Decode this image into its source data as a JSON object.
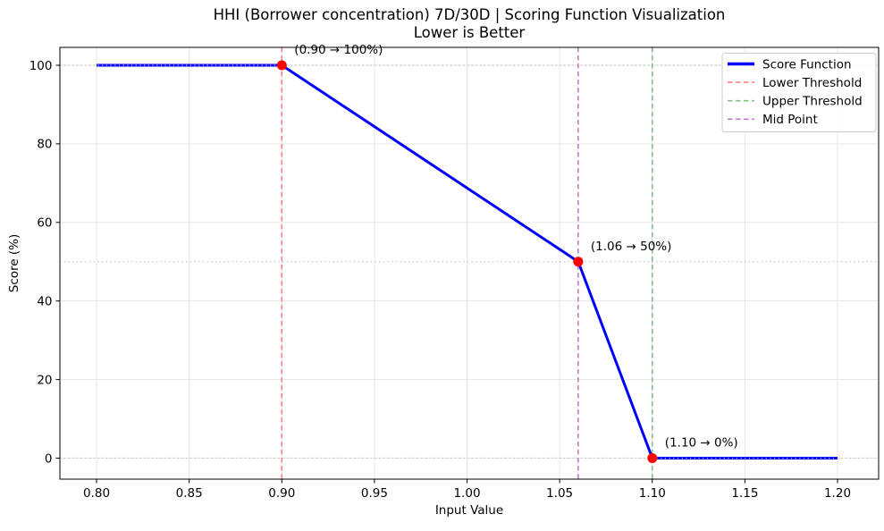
{
  "chart_data": {
    "type": "line",
    "title": "HHI (Borrower concentration) 7D/30D | Scoring Function Visualization",
    "subtitle": "Lower is Better",
    "xlabel": "Input Value",
    "ylabel": "Score (%)",
    "xlim": [
      0.7802,
      1.2222
    ],
    "ylim": [
      -5.35,
      104.55
    ],
    "x_ticks": [
      0.8,
      0.85,
      0.9,
      0.95,
      1.0,
      1.05,
      1.1,
      1.15,
      1.2
    ],
    "x_tick_labels": [
      "0.80",
      "0.85",
      "0.90",
      "0.95",
      "1.00",
      "1.05",
      "1.10",
      "1.15",
      "1.20"
    ],
    "y_ticks": [
      0,
      20,
      40,
      60,
      80,
      100
    ],
    "y_tick_labels": [
      "0",
      "20",
      "40",
      "60",
      "80",
      "100"
    ],
    "grid": true,
    "series": [
      {
        "name": "Score Function",
        "color": "#0000ff",
        "style": "solid",
        "points": [
          [
            0.8,
            100
          ],
          [
            0.9,
            100
          ],
          [
            1.06,
            50
          ],
          [
            1.1,
            0
          ],
          [
            1.2,
            0
          ]
        ]
      }
    ],
    "reference_lines_h": [
      {
        "y": 0,
        "style": "dotted",
        "color": "#c0c0c0"
      },
      {
        "y": 50,
        "style": "dotted",
        "color": "#c0c0c0"
      },
      {
        "y": 100,
        "style": "dotted",
        "color": "#c0c0c0"
      }
    ],
    "reference_lines_v": [
      {
        "name": "Lower Threshold",
        "x": 0.9,
        "style": "dashed",
        "color": "#ff8080"
      },
      {
        "name": "Mid Point",
        "x": 1.06,
        "style": "dashed",
        "color": "#c080c0"
      },
      {
        "name": "Upper Threshold",
        "x": 1.1,
        "style": "dashed",
        "color": "#80c080"
      }
    ],
    "markers": [
      {
        "x": 0.9,
        "y": 100,
        "color": "#ff0000",
        "label": "(0.90 → 100%)"
      },
      {
        "x": 1.06,
        "y": 50,
        "color": "#ff0000",
        "label": "(1.06 → 50%)"
      },
      {
        "x": 1.1,
        "y": 0,
        "color": "#ff0000",
        "label": "(1.10 → 0%)"
      }
    ],
    "legend": {
      "position": "upper right",
      "entries": [
        {
          "label": "Score Function",
          "color": "#0000ff",
          "style": "solid"
        },
        {
          "label": "Lower Threshold",
          "color": "#ff8080",
          "style": "dashed"
        },
        {
          "label": "Upper Threshold",
          "color": "#80c080",
          "style": "dashed"
        },
        {
          "label": "Mid Point",
          "color": "#c080c0",
          "style": "dashed"
        }
      ]
    },
    "colors": {
      "line": "#0000ff",
      "marker": "#ff0000",
      "grid": "#e4e4e4",
      "dotted_reference": "#c0c0c0",
      "legend_border": "#cccccc",
      "text": "#000000"
    }
  }
}
